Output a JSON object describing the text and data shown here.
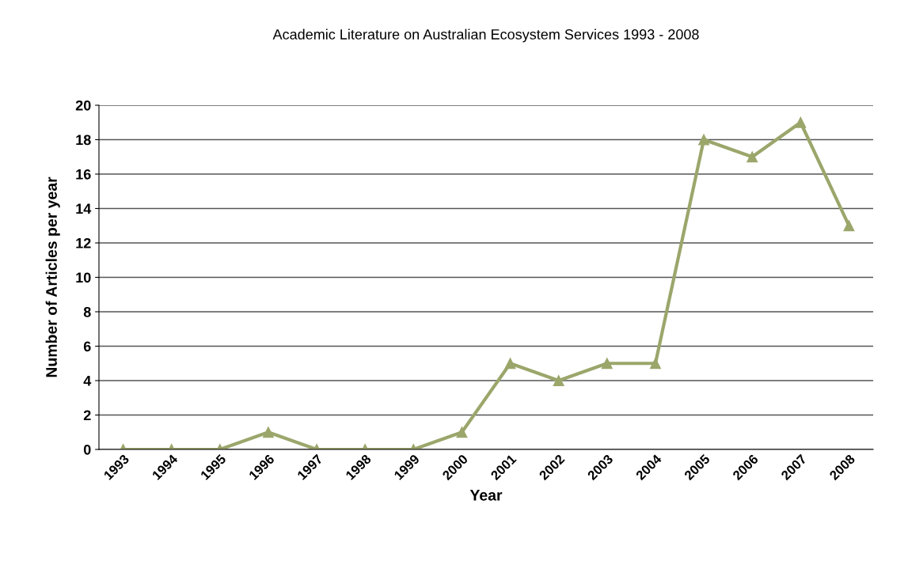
{
  "chart_data": {
    "type": "line",
    "title": "Academic Literature on Australian Ecosystem Services 1993 - 2008",
    "xlabel": "Year",
    "ylabel": "Number of Articles per year",
    "categories": [
      "1993",
      "1994",
      "1995",
      "1996",
      "1997",
      "1998",
      "1999",
      "2000",
      "2001",
      "2002",
      "2003",
      "2004",
      "2005",
      "2006",
      "2007",
      "2008"
    ],
    "series": [
      {
        "color": "#9ba66b",
        "values": [
          0,
          0,
          0,
          1,
          0,
          0,
          0,
          1,
          5,
          4,
          5,
          5,
          18,
          17,
          19,
          13
        ]
      }
    ],
    "ylim": [
      0,
      20
    ],
    "yticks": [
      0,
      2,
      4,
      6,
      8,
      10,
      12,
      14,
      16,
      18,
      20
    ],
    "grid": "y",
    "marker": "triangle",
    "line_style": "solid"
  }
}
